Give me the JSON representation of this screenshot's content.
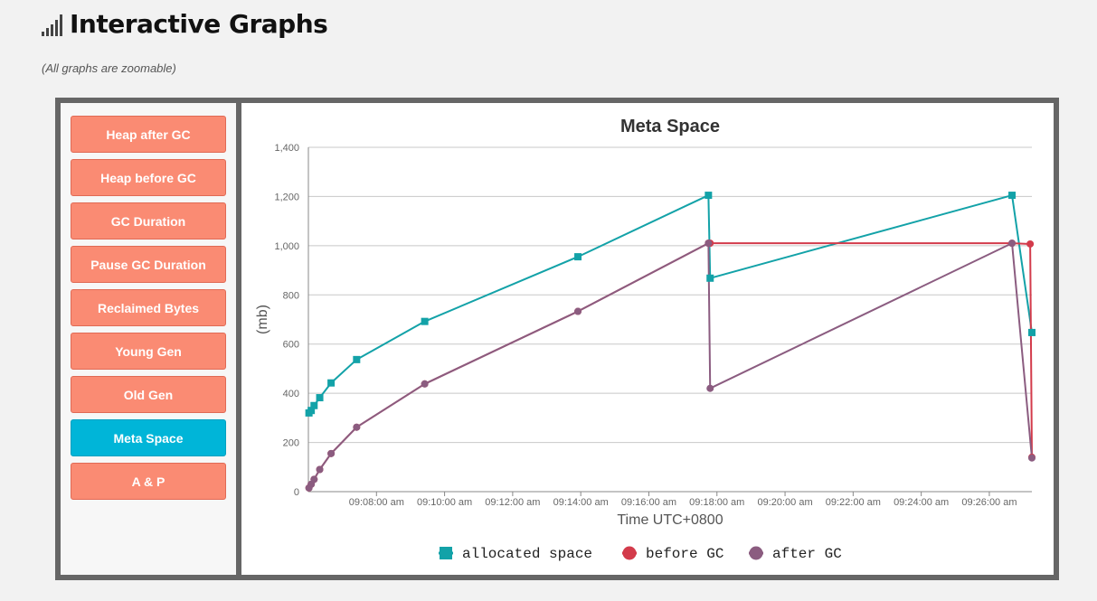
{
  "header": {
    "title": "Interactive Graphs",
    "subtitle": "(All graphs are zoomable)",
    "icon": "signal-bars-icon"
  },
  "sidebar": {
    "items": [
      {
        "label": "Heap after GC",
        "active": false
      },
      {
        "label": "Heap before GC",
        "active": false
      },
      {
        "label": "GC Duration",
        "active": false
      },
      {
        "label": "Pause GC Duration",
        "active": false
      },
      {
        "label": "Reclaimed Bytes",
        "active": false
      },
      {
        "label": "Young Gen",
        "active": false
      },
      {
        "label": "Old Gen",
        "active": false
      },
      {
        "label": "Meta Space",
        "active": true
      },
      {
        "label": "A & P",
        "active": false
      }
    ]
  },
  "colors": {
    "button": "#fa8b73",
    "active_button": "#00b5d8",
    "allocated": "#13a2a8",
    "before": "#d33b4b",
    "after": "#8b5c80"
  },
  "chart_data": {
    "type": "line",
    "title": "Meta Space",
    "xlabel": "Time UTC+0800",
    "ylabel": "(mb)",
    "ylim": [
      0,
      1400
    ],
    "xlim": [
      "09:06:00",
      "09:27:15"
    ],
    "x_ticks": [
      "09:08:00 am",
      "09:10:00 am",
      "09:12:00 am",
      "09:14:00 am",
      "09:16:00 am",
      "09:18:00 am",
      "09:20:00 am",
      "09:22:00 am",
      "09:24:00 am",
      "09:26:00 am"
    ],
    "y_ticks": [
      "0",
      "200",
      "400",
      "600",
      "800",
      "1,000",
      "1,200",
      "1,400"
    ],
    "grid": true,
    "legend_position": "bottom",
    "series": [
      {
        "name": "allocated space",
        "marker": "square",
        "color": "#13a2a8",
        "points": [
          [
            "09:06:01",
            320
          ],
          [
            "09:06:05",
            330
          ],
          [
            "09:06:10",
            350
          ],
          [
            "09:06:20",
            382
          ],
          [
            "09:06:40",
            442
          ],
          [
            "09:07:25",
            537
          ],
          [
            "09:09:25",
            692
          ],
          [
            "09:13:55",
            955
          ],
          [
            "09:17:45",
            1205
          ],
          [
            "09:17:48",
            868
          ],
          [
            "09:26:40",
            1205
          ],
          [
            "09:27:15",
            647
          ]
        ]
      },
      {
        "name": "before GC",
        "marker": "circle",
        "color": "#d33b4b",
        "points": [
          [
            "09:06:01",
            15
          ],
          [
            "09:06:05",
            30
          ],
          [
            "09:06:10",
            50
          ],
          [
            "09:06:20",
            90
          ],
          [
            "09:06:40",
            155
          ],
          [
            "09:07:25",
            262
          ],
          [
            "09:09:25",
            438
          ],
          [
            "09:13:55",
            733
          ],
          [
            "09:17:45",
            1010
          ],
          [
            "09:17:48",
            1010
          ],
          [
            "09:26:40",
            1010
          ],
          [
            "09:27:12",
            1007
          ],
          [
            "09:27:15",
            140
          ]
        ]
      },
      {
        "name": "after GC",
        "marker": "circle",
        "color": "#8b5c80",
        "points": [
          [
            "09:06:01",
            15
          ],
          [
            "09:06:05",
            30
          ],
          [
            "09:06:10",
            50
          ],
          [
            "09:06:20",
            90
          ],
          [
            "09:06:40",
            155
          ],
          [
            "09:07:25",
            262
          ],
          [
            "09:09:25",
            438
          ],
          [
            "09:13:55",
            733
          ],
          [
            "09:17:45",
            1010
          ],
          [
            "09:17:48",
            420
          ],
          [
            "09:26:40",
            1010
          ],
          [
            "09:27:15",
            137
          ]
        ]
      }
    ]
  }
}
